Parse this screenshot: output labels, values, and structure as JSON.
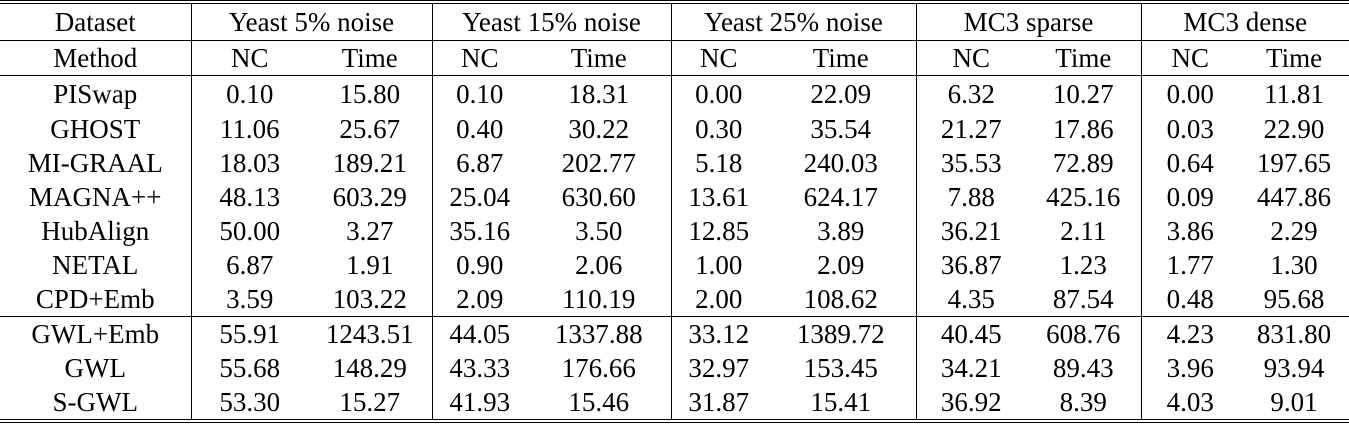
{
  "table": {
    "dataset_label": "Dataset",
    "method_label": "Method",
    "datasets": [
      "Yeast 5% noise",
      "Yeast 15% noise",
      "Yeast 25% noise",
      "MC3 sparse",
      "MC3 dense"
    ],
    "metrics": [
      "NC",
      "Time"
    ],
    "groups": [
      {
        "rows": [
          {
            "method": "PISwap",
            "values": [
              "0.10",
              "15.80",
              "0.10",
              "18.31",
              "0.00",
              "22.09",
              "6.32",
              "10.27",
              "0.00",
              "11.81"
            ]
          },
          {
            "method": "GHOST",
            "values": [
              "11.06",
              "25.67",
              "0.40",
              "30.22",
              "0.30",
              "35.54",
              "21.27",
              "17.86",
              "0.03",
              "22.90"
            ]
          },
          {
            "method": "MI-GRAAL",
            "values": [
              "18.03",
              "189.21",
              "6.87",
              "202.77",
              "5.18",
              "240.03",
              "35.53",
              "72.89",
              "0.64",
              "197.65"
            ]
          },
          {
            "method": "MAGNA++",
            "values": [
              "48.13",
              "603.29",
              "25.04",
              "630.60",
              "13.61",
              "624.17",
              "7.88",
              "425.16",
              "0.09",
              "447.86"
            ]
          },
          {
            "method": "HubAlign",
            "values": [
              "50.00",
              "3.27",
              "35.16",
              "3.50",
              "12.85",
              "3.89",
              "36.21",
              "2.11",
              "3.86",
              "2.29"
            ]
          },
          {
            "method": "NETAL",
            "values": [
              "6.87",
              "1.91",
              "0.90",
              "2.06",
              "1.00",
              "2.09",
              "36.87",
              "1.23",
              "1.77",
              "1.30"
            ]
          },
          {
            "method": "CPD+Emb",
            "values": [
              "3.59",
              "103.22",
              "2.09",
              "110.19",
              "2.00",
              "108.62",
              "4.35",
              "87.54",
              "0.48",
              "95.68"
            ]
          }
        ]
      },
      {
        "rows": [
          {
            "method": "GWL+Emb",
            "values": [
              "55.91",
              "1243.51",
              "44.05",
              "1337.88",
              "33.12",
              "1389.72",
              "40.45",
              "608.76",
              "4.23",
              "831.80"
            ]
          },
          {
            "method": "GWL",
            "values": [
              "55.68",
              "148.29",
              "43.33",
              "176.66",
              "32.97",
              "153.45",
              "34.21",
              "89.43",
              "3.96",
              "93.94"
            ]
          },
          {
            "method": "S-GWL",
            "values": [
              "53.30",
              "15.27",
              "41.93",
              "15.46",
              "31.87",
              "15.41",
              "36.92",
              "8.39",
              "4.03",
              "9.01"
            ]
          }
        ]
      }
    ]
  }
}
